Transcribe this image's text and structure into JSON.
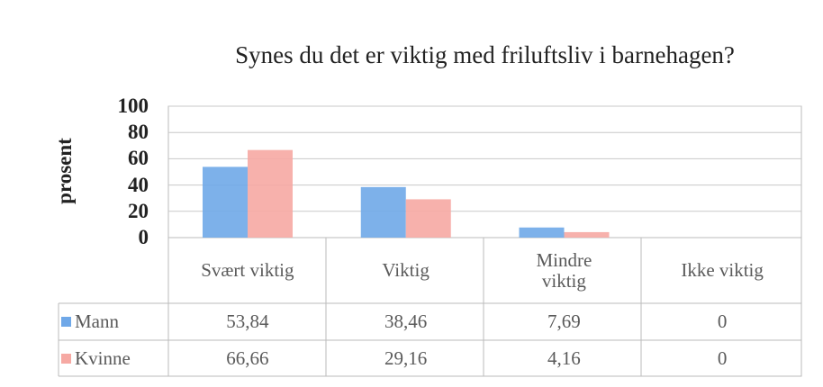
{
  "chart_data": {
    "type": "bar",
    "title": "Synes du det er viktig med friluftsliv i barnehagen?",
    "ylabel": "prosent",
    "categories": [
      "Svært viktig",
      "Viktig",
      "Mindre viktig",
      "Ikke viktig"
    ],
    "series": [
      {
        "name": "Mann",
        "color": "#6fa8e8",
        "values": [
          53.84,
          38.46,
          7.69,
          0
        ],
        "value_labels": [
          "53,84",
          "38,46",
          "7,69",
          "0"
        ]
      },
      {
        "name": "Kvinne",
        "color": "#f6a9a3",
        "values": [
          66.66,
          29.16,
          4.16,
          0
        ],
        "value_labels": [
          "66,66",
          "29,16",
          "4,16",
          "0"
        ]
      }
    ],
    "ylim": [
      0,
      100
    ],
    "yticks": [
      0,
      20,
      40,
      60,
      80,
      100
    ],
    "grid": true
  }
}
